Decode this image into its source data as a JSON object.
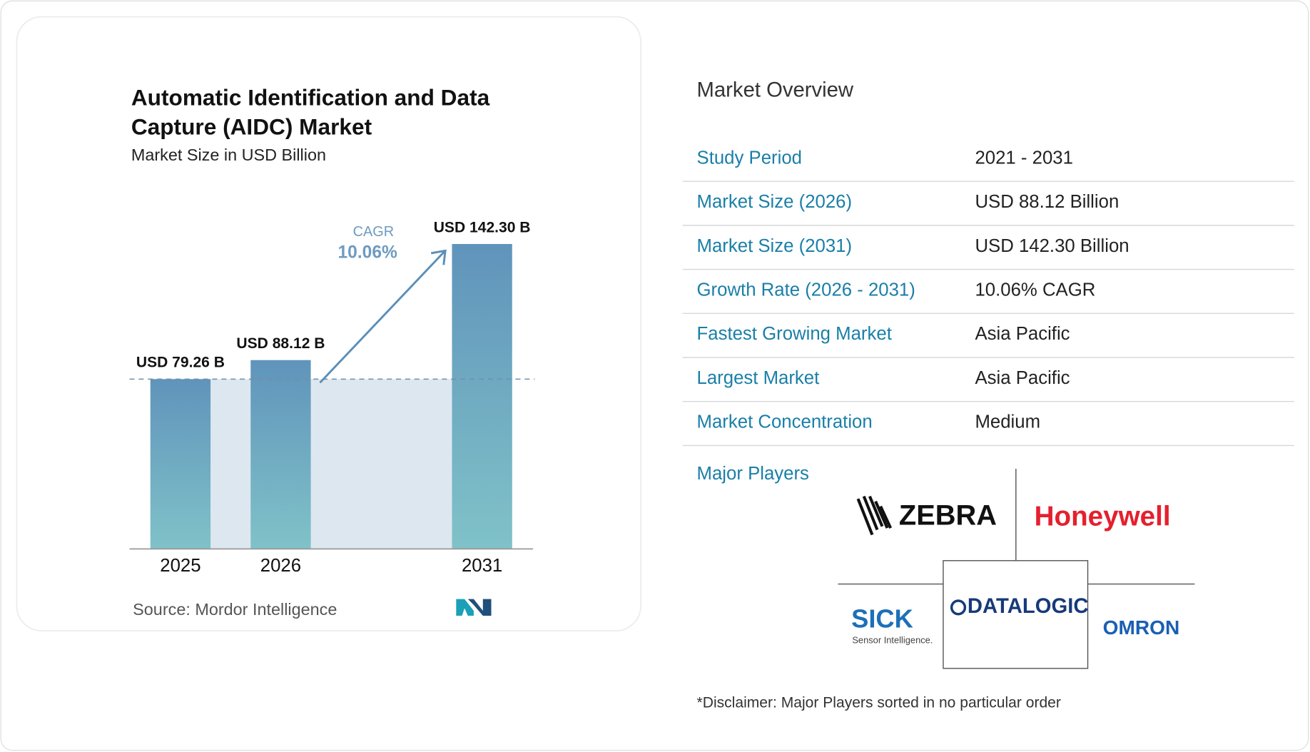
{
  "chart_data": {
    "type": "bar",
    "title": "Automatic Identification and Data Capture (AIDC) Market",
    "subtitle": "Market Size in USD Billion",
    "categories": [
      "2025",
      "2026",
      "2031"
    ],
    "values": [
      79.26,
      88.12,
      142.3
    ],
    "value_labels": [
      "USD 79.26 B",
      "USD 88.12 B",
      "USD 142.30 B"
    ],
    "annotations": {
      "cagr_label": "CAGR",
      "cagr_value": "10.06%"
    },
    "source": "Source:  Mordor Intelligence"
  },
  "overview": {
    "title": "Market Overview",
    "rows": [
      {
        "label": "Study Period",
        "value": "2021 - 2031"
      },
      {
        "label": "Market Size (2026)",
        "value": "USD 88.12 Billion"
      },
      {
        "label": "Market Size (2031)",
        "value": "USD 142.30 Billion"
      },
      {
        "label": "Growth Rate (2026 - 2031)",
        "value": "10.06% CAGR"
      },
      {
        "label": "Fastest Growing Market",
        "value": "Asia Pacific"
      },
      {
        "label": "Largest Market",
        "value": "Asia Pacific"
      },
      {
        "label": "Market Concentration",
        "value": "Medium"
      }
    ]
  },
  "major_players": {
    "title": "Major Players",
    "logos": [
      "ZEBRA",
      "Honeywell",
      "SICK",
      "Sensor Intelligence.",
      "DATALOGIC",
      "OMRON"
    ]
  },
  "disclaimer": "*Disclaimer: Major Players sorted in no particular order"
}
